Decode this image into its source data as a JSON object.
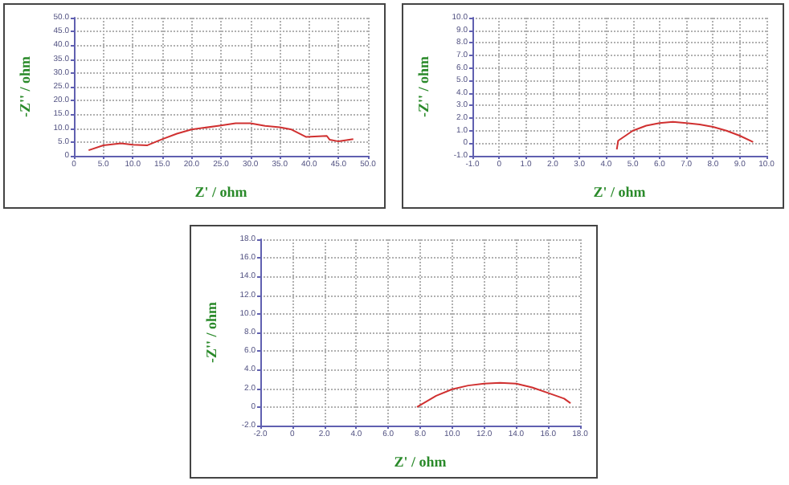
{
  "chart_data": [
    {
      "type": "line",
      "xlabel": "Z' / ohm",
      "ylabel": "-Z'' / ohm",
      "grid": true,
      "marker": "none",
      "line_style": "solid",
      "xlim": [
        0,
        50
      ],
      "ylim": [
        0,
        50
      ],
      "xticks": [
        {
          "value": 0,
          "label": "0"
        },
        {
          "value": 5,
          "label": "5.0"
        },
        {
          "value": 10,
          "label": "10.0"
        },
        {
          "value": 15,
          "label": "15.0"
        },
        {
          "value": 20,
          "label": "20.0"
        },
        {
          "value": 25,
          "label": "25.0"
        },
        {
          "value": 30,
          "label": "30.0"
        },
        {
          "value": 35,
          "label": "35.0"
        },
        {
          "value": 40,
          "label": "40.0"
        },
        {
          "value": 45,
          "label": "45.0"
        },
        {
          "value": 50,
          "label": "50.0"
        }
      ],
      "yticks": [
        {
          "value": 0,
          "label": "0"
        },
        {
          "value": 5,
          "label": "5.0"
        },
        {
          "value": 10,
          "label": "10.0"
        },
        {
          "value": 15,
          "label": "15.0"
        },
        {
          "value": 20,
          "label": "20.0"
        },
        {
          "value": 25,
          "label": "25.0"
        },
        {
          "value": 30,
          "label": "30.0"
        },
        {
          "value": 35,
          "label": "35.0"
        },
        {
          "value": 40,
          "label": "40.0"
        },
        {
          "value": 45,
          "label": "45.0"
        },
        {
          "value": 50,
          "label": "50.0"
        }
      ],
      "series": [
        {
          "color": "#d03030",
          "x": [
            2.5,
            5,
            8,
            10,
            12.5,
            15,
            17.5,
            20,
            25,
            27.5,
            30,
            32.5,
            35,
            37,
            39.5,
            43,
            43.5,
            45,
            47.5
          ],
          "values": [
            2,
            3.8,
            4.5,
            4,
            3.8,
            6,
            8,
            9.5,
            11,
            11.8,
            11.8,
            10.8,
            10.3,
            9.5,
            6.8,
            7.2,
            5.8,
            5.2,
            6
          ]
        }
      ]
    },
    {
      "type": "line",
      "xlabel": "Z' / ohm",
      "ylabel": "-Z'' / ohm",
      "grid": true,
      "marker": "none",
      "line_style": "solid",
      "xlim": [
        -1,
        10
      ],
      "ylim": [
        -1,
        10
      ],
      "xticks": [
        {
          "value": -1,
          "label": "-1.0"
        },
        {
          "value": 0,
          "label": "0"
        },
        {
          "value": 1,
          "label": "1.0"
        },
        {
          "value": 2,
          "label": "2.0"
        },
        {
          "value": 3,
          "label": "3.0"
        },
        {
          "value": 4,
          "label": "4.0"
        },
        {
          "value": 5,
          "label": "5.0"
        },
        {
          "value": 6,
          "label": "6.0"
        },
        {
          "value": 7,
          "label": "7.0"
        },
        {
          "value": 8,
          "label": "8.0"
        },
        {
          "value": 9,
          "label": "9.0"
        },
        {
          "value": 10,
          "label": "10.0"
        }
      ],
      "yticks": [
        {
          "value": -1,
          "label": "-1.0"
        },
        {
          "value": 0,
          "label": "0"
        },
        {
          "value": 1,
          "label": "1.0"
        },
        {
          "value": 2,
          "label": "2.0"
        },
        {
          "value": 3,
          "label": "3.0"
        },
        {
          "value": 4,
          "label": "4.0"
        },
        {
          "value": 5,
          "label": "5.0"
        },
        {
          "value": 6,
          "label": "6.0"
        },
        {
          "value": 7,
          "label": "7.0"
        },
        {
          "value": 8,
          "label": "8.0"
        },
        {
          "value": 9,
          "label": "9.0"
        },
        {
          "value": 10,
          "label": "10.0"
        }
      ],
      "series": [
        {
          "color": "#d03030",
          "x": [
            4.4,
            4.45,
            5,
            5.5,
            6,
            6.5,
            7,
            7.5,
            8,
            8.5,
            9,
            9.5
          ],
          "values": [
            -0.5,
            0.2,
            1,
            1.4,
            1.6,
            1.7,
            1.6,
            1.5,
            1.3,
            1,
            0.6,
            0.1
          ]
        }
      ]
    },
    {
      "type": "line",
      "xlabel": "Z' / ohm",
      "ylabel": "-Z'' / ohm",
      "grid": true,
      "marker": "none",
      "line_style": "solid",
      "xlim": [
        -2,
        18
      ],
      "ylim": [
        -2,
        18
      ],
      "xticks": [
        {
          "value": -2,
          "label": "-2.0"
        },
        {
          "value": 0,
          "label": "0"
        },
        {
          "value": 2,
          "label": "2.0"
        },
        {
          "value": 4,
          "label": "4.0"
        },
        {
          "value": 6,
          "label": "6.0"
        },
        {
          "value": 8,
          "label": "8.0"
        },
        {
          "value": 10,
          "label": "10.0"
        },
        {
          "value": 12,
          "label": "12.0"
        },
        {
          "value": 14,
          "label": "14.0"
        },
        {
          "value": 16,
          "label": "16.0"
        },
        {
          "value": 18,
          "label": "18.0"
        }
      ],
      "yticks": [
        {
          "value": -2,
          "label": "-2.0"
        },
        {
          "value": 0,
          "label": "0"
        },
        {
          "value": 2,
          "label": "2.0"
        },
        {
          "value": 4,
          "label": "4.0"
        },
        {
          "value": 6,
          "label": "6.0"
        },
        {
          "value": 8,
          "label": "8.0"
        },
        {
          "value": 10,
          "label": "10.0"
        },
        {
          "value": 12,
          "label": "12.0"
        },
        {
          "value": 14,
          "label": "14.0"
        },
        {
          "value": 16,
          "label": "16.0"
        },
        {
          "value": 18,
          "label": "18.0"
        }
      ],
      "series": [
        {
          "color": "#d03030",
          "x": [
            7.8,
            9,
            10,
            11,
            12,
            13,
            14,
            15,
            16,
            17,
            17.4
          ],
          "values": [
            0,
            1.2,
            1.9,
            2.3,
            2.5,
            2.6,
            2.5,
            2.1,
            1.5,
            0.9,
            0.4
          ]
        }
      ]
    }
  ]
}
